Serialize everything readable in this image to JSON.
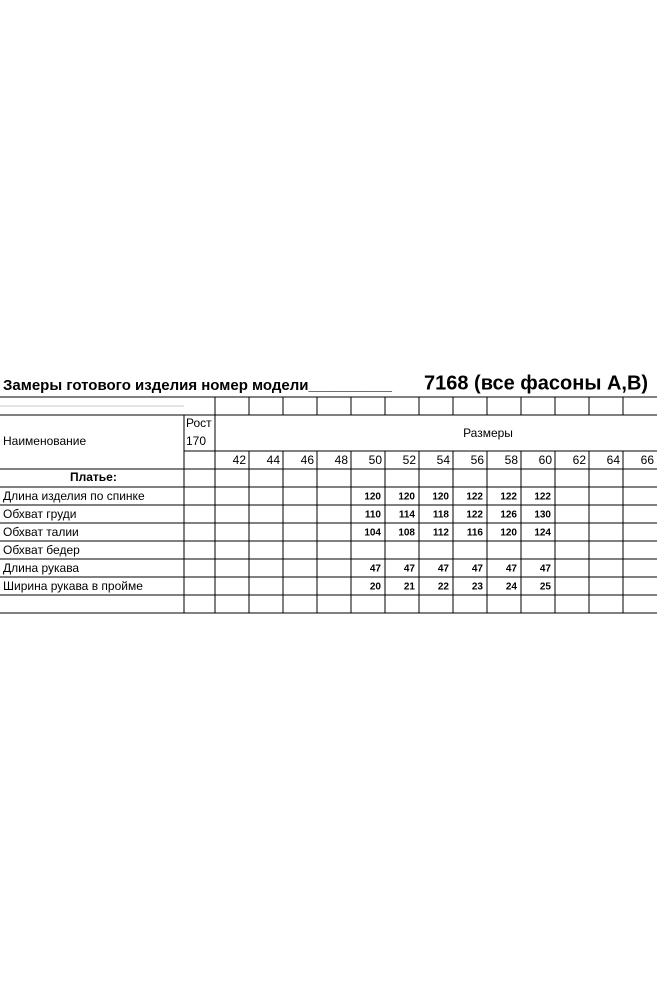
{
  "header": {
    "title": "Замеры готового изделия номер модели__________",
    "model": "7168 (все фасоны А,В)"
  },
  "table": {
    "name_header": "Наименование",
    "height_header": [
      "Рост",
      "170"
    ],
    "sizes_header": "Размеры",
    "sizes": [
      42,
      44,
      46,
      48,
      50,
      52,
      54,
      56,
      58,
      60,
      62,
      64,
      66
    ],
    "section": "Платье:",
    "rows": [
      {
        "label": "Длина изделия по спинке",
        "values": [
          null,
          null,
          null,
          null,
          120,
          120,
          120,
          122,
          122,
          122,
          null,
          null,
          null
        ]
      },
      {
        "label": "Обхват груди",
        "values": [
          null,
          null,
          null,
          null,
          110,
          114,
          118,
          122,
          126,
          130,
          null,
          null,
          null
        ]
      },
      {
        "label": "Обхват талии",
        "values": [
          null,
          null,
          null,
          null,
          104,
          108,
          112,
          116,
          120,
          124,
          null,
          null,
          null
        ]
      },
      {
        "label": "Обхват бедер",
        "values": [
          null,
          null,
          null,
          null,
          null,
          null,
          null,
          null,
          null,
          null,
          null,
          null,
          null
        ]
      },
      {
        "label": "Длина рукава",
        "values": [
          null,
          null,
          null,
          null,
          47,
          47,
          47,
          47,
          47,
          47,
          null,
          null,
          null
        ]
      },
      {
        "label": "Ширина рукава в пройме",
        "values": [
          null,
          null,
          null,
          null,
          20,
          21,
          22,
          23,
          24,
          25,
          null,
          null,
          null
        ]
      }
    ]
  }
}
